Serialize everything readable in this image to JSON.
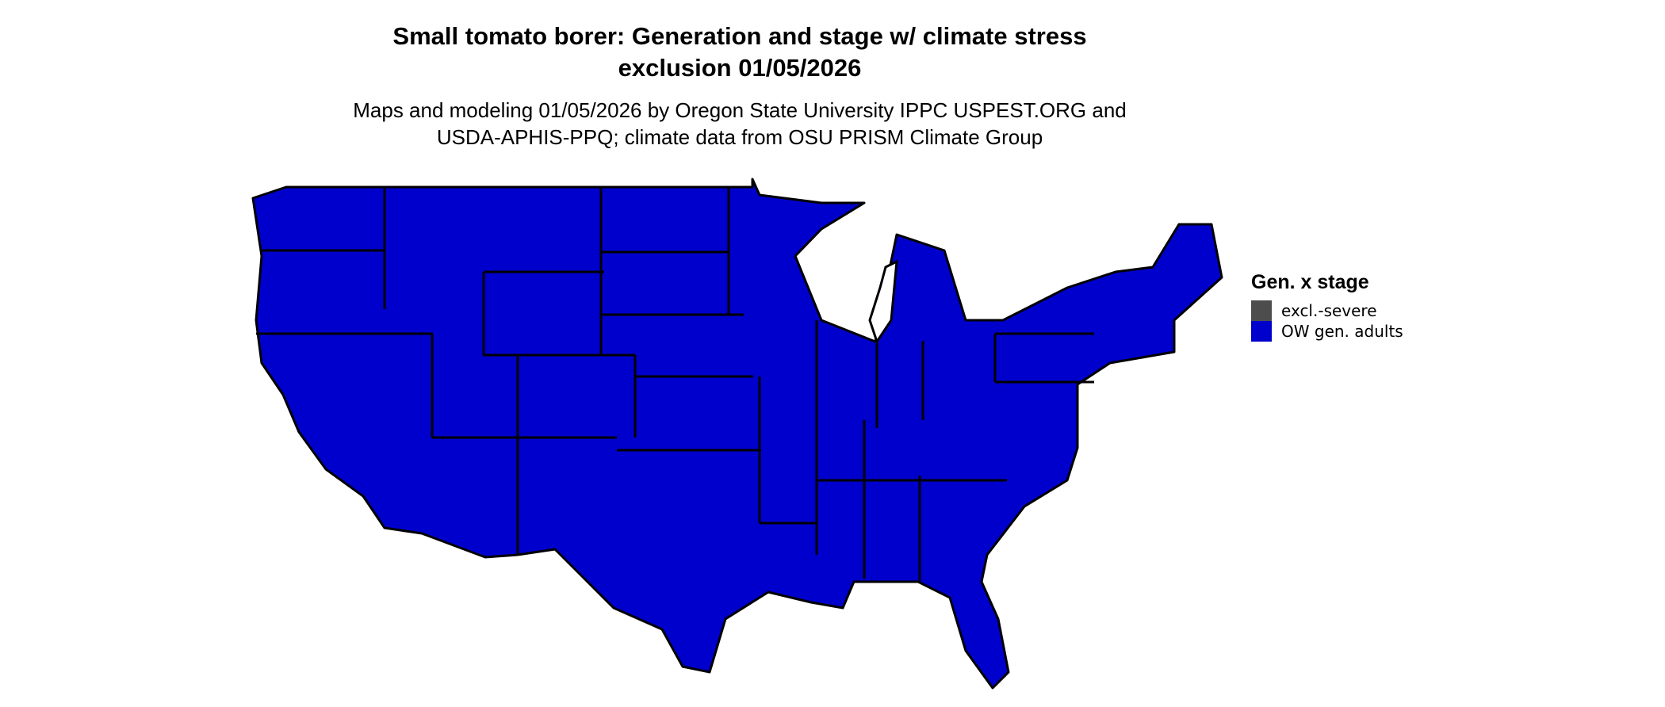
{
  "title": {
    "line1": "Small tomato borer: Generation and stage w/ climate stress",
    "line2": "exclusion 01/05/2026"
  },
  "subtitle": {
    "line1": "Maps and modeling 01/05/2026 by Oregon State University IPPC USPEST.ORG and",
    "line2": "USDA-APHIS-PPQ; climate data from OSU PRISM Climate Group"
  },
  "legend": {
    "title": "Gen. x stage",
    "items": [
      {
        "label": "excl.-severe",
        "color": "#4D4D4D"
      },
      {
        "label": "OW gen. adults",
        "color": "#0000CD"
      }
    ]
  },
  "map": {
    "region": "Contiguous United States",
    "fill_color": "#0000CD",
    "border_color": "#000000",
    "category_shown": "OW gen. adults"
  }
}
